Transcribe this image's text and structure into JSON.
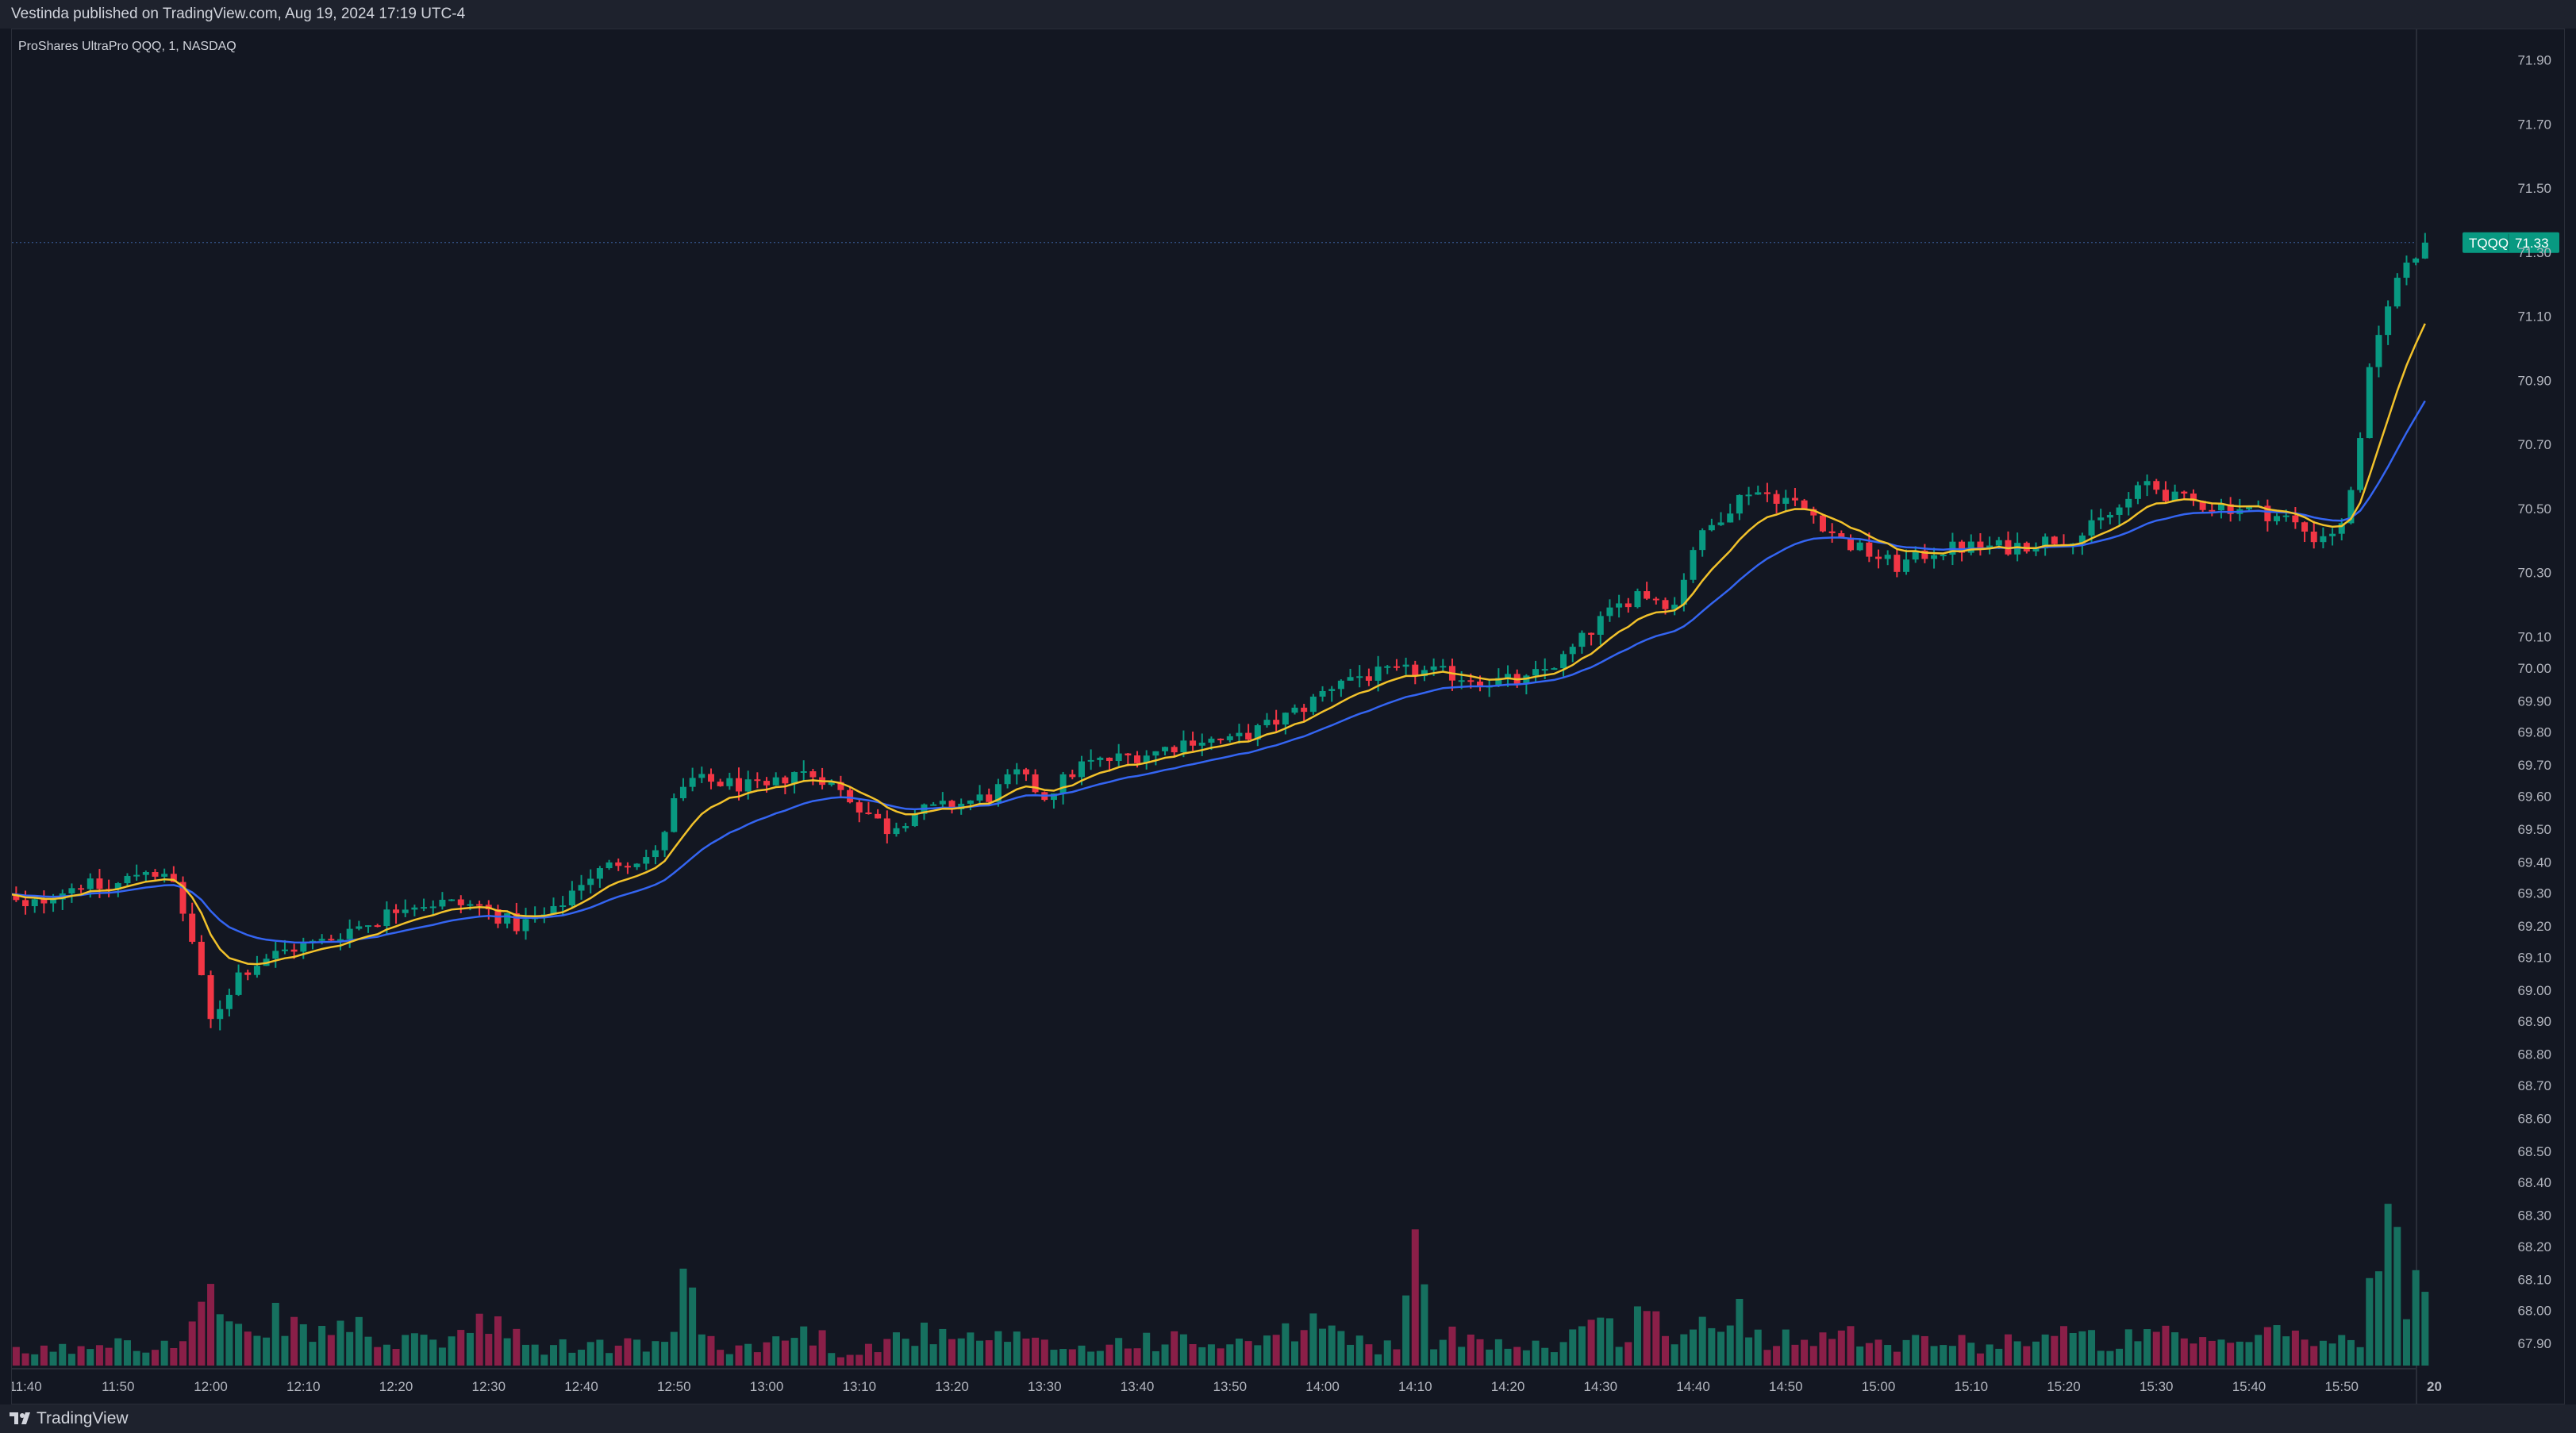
{
  "header": {
    "published_text": "Vestinda published on TradingView.com, Aug 19, 2024 17:19 UTC-4"
  },
  "footer": {
    "brand": "TradingView"
  },
  "chart_data": {
    "type": "candlestick",
    "title": "ProShares UltraPro QQQ, 1, NASDAQ",
    "symbol": "TQQQ",
    "last_price": "71.33",
    "price_ticks": [
      "71.90",
      "71.70",
      "71.50",
      "71.30",
      "71.10",
      "70.90",
      "70.70",
      "70.50",
      "70.30",
      "70.10",
      "70.00",
      "69.90",
      "69.80",
      "69.70",
      "69.60",
      "69.50",
      "69.40",
      "69.30",
      "69.20",
      "69.10",
      "69.00",
      "68.90",
      "68.80",
      "68.70",
      "68.60",
      "68.50",
      "68.40",
      "68.30",
      "68.20",
      "68.10",
      "68.00",
      "67.90"
    ],
    "time_ticks": [
      "11:40",
      "11:50",
      "12:00",
      "12:10",
      "12:20",
      "12:30",
      "12:40",
      "12:50",
      "13:00",
      "13:10",
      "13:20",
      "13:30",
      "13:40",
      "13:50",
      "14:00",
      "14:10",
      "14:20",
      "14:30",
      "14:40",
      "14:50",
      "15:00",
      "15:10",
      "15:20",
      "15:30",
      "15:40",
      "15:50",
      "20"
    ],
    "price_path": [
      [
        "11:38",
        69.29
      ],
      [
        "11:40",
        69.25
      ],
      [
        "11:43",
        69.3
      ],
      [
        "11:46",
        69.33
      ],
      [
        "11:49",
        69.31
      ],
      [
        "11:53",
        69.38
      ],
      [
        "11:56",
        69.33
      ],
      [
        "11:58",
        69.15
      ],
      [
        "12:00",
        68.9
      ],
      [
        "12:03",
        69.05
      ],
      [
        "12:06",
        69.1
      ],
      [
        "12:09",
        69.13
      ],
      [
        "12:12",
        69.15
      ],
      [
        "12:15",
        69.19
      ],
      [
        "12:18",
        69.22
      ],
      [
        "12:21",
        69.27
      ],
      [
        "12:25",
        69.27
      ],
      [
        "12:29",
        69.26
      ],
      [
        "12:33",
        69.2
      ],
      [
        "12:37",
        69.24
      ],
      [
        "12:40",
        69.34
      ],
      [
        "12:44",
        69.4
      ],
      [
        "12:48",
        69.42
      ],
      [
        "12:50",
        69.58
      ],
      [
        "12:52",
        69.65
      ],
      [
        "12:56",
        69.64
      ],
      [
        "13:00",
        69.62
      ],
      [
        "13:03",
        69.68
      ],
      [
        "13:06",
        69.66
      ],
      [
        "13:10",
        69.57
      ],
      [
        "13:13",
        69.5
      ],
      [
        "13:16",
        69.55
      ],
      [
        "13:20",
        69.57
      ],
      [
        "13:24",
        69.6
      ],
      [
        "13:27",
        69.67
      ],
      [
        "13:30",
        69.6
      ],
      [
        "13:34",
        69.7
      ],
      [
        "13:38",
        69.72
      ],
      [
        "13:42",
        69.74
      ],
      [
        "13:46",
        69.78
      ],
      [
        "13:50",
        69.77
      ],
      [
        "13:54",
        69.82
      ],
      [
        "13:58",
        69.88
      ],
      [
        "14:02",
        69.97
      ],
      [
        "14:06",
        69.98
      ],
      [
        "14:10",
        69.99
      ],
      [
        "14:14",
        69.98
      ],
      [
        "14:18",
        69.96
      ],
      [
        "14:22",
        69.96
      ],
      [
        "14:26",
        70.03
      ],
      [
        "14:30",
        70.15
      ],
      [
        "14:34",
        70.24
      ],
      [
        "14:38",
        70.2
      ],
      [
        "14:40",
        70.38
      ],
      [
        "14:43",
        70.48
      ],
      [
        "14:46",
        70.56
      ],
      [
        "14:50",
        70.53
      ],
      [
        "14:53",
        70.48
      ],
      [
        "14:56",
        70.4
      ],
      [
        "14:59",
        70.36
      ],
      [
        "15:02",
        70.32
      ],
      [
        "15:06",
        70.37
      ],
      [
        "15:10",
        70.38
      ],
      [
        "15:14",
        70.38
      ],
      [
        "15:18",
        70.4
      ],
      [
        "15:22",
        70.42
      ],
      [
        "15:26",
        70.5
      ],
      [
        "15:29",
        70.58
      ],
      [
        "15:32",
        70.53
      ],
      [
        "15:36",
        70.51
      ],
      [
        "15:40",
        70.5
      ],
      [
        "15:44",
        70.47
      ],
      [
        "15:47",
        70.41
      ],
      [
        "15:50",
        70.44
      ],
      [
        "15:52",
        70.7
      ],
      [
        "15:53",
        70.92
      ],
      [
        "15:55",
        71.15
      ],
      [
        "15:57",
        71.27
      ],
      [
        "15:59",
        71.33
      ]
    ],
    "volume_path": [
      [
        "11:38",
        0.04
      ],
      [
        "11:45",
        0.05
      ],
      [
        "11:50",
        0.09
      ],
      [
        "11:56",
        0.05
      ],
      [
        "12:00",
        0.21
      ],
      [
        "12:02",
        0.1
      ],
      [
        "12:05",
        0.07
      ],
      [
        "12:08",
        0.16
      ],
      [
        "12:10",
        0.09
      ],
      [
        "12:15",
        0.12
      ],
      [
        "12:20",
        0.06
      ],
      [
        "12:25",
        0.08
      ],
      [
        "12:30",
        0.12
      ],
      [
        "12:35",
        0.05
      ],
      [
        "12:40",
        0.06
      ],
      [
        "12:45",
        0.06
      ],
      [
        "12:50",
        0.07
      ],
      [
        "12:51",
        0.4
      ],
      [
        "12:53",
        0.08
      ],
      [
        "12:58",
        0.05
      ],
      [
        "13:00",
        0.07
      ],
      [
        "13:05",
        0.1
      ],
      [
        "13:08",
        0.04
      ],
      [
        "13:12",
        0.06
      ],
      [
        "13:16",
        0.1
      ],
      [
        "13:20",
        0.07
      ],
      [
        "13:25",
        0.08
      ],
      [
        "13:30",
        0.06
      ],
      [
        "13:35",
        0.05
      ],
      [
        "13:40",
        0.08
      ],
      [
        "13:45",
        0.07
      ],
      [
        "13:50",
        0.06
      ],
      [
        "13:55",
        0.07
      ],
      [
        "13:59",
        0.14
      ],
      [
        "14:02",
        0.08
      ],
      [
        "14:06",
        0.06
      ],
      [
        "14:08",
        0.06
      ],
      [
        "14:10",
        0.29
      ],
      [
        "14:12",
        0.07
      ],
      [
        "14:16",
        0.1
      ],
      [
        "14:20",
        0.06
      ],
      [
        "14:25",
        0.06
      ],
      [
        "14:28",
        0.12
      ],
      [
        "14:32",
        0.1
      ],
      [
        "14:35",
        0.16
      ],
      [
        "14:38",
        0.09
      ],
      [
        "14:42",
        0.11
      ],
      [
        "14:45",
        0.16
      ],
      [
        "14:48",
        0.07
      ],
      [
        "14:52",
        0.12
      ],
      [
        "14:55",
        0.08
      ],
      [
        "14:58",
        0.1
      ],
      [
        "15:02",
        0.07
      ],
      [
        "15:06",
        0.08
      ],
      [
        "15:10",
        0.06
      ],
      [
        "15:15",
        0.08
      ],
      [
        "15:20",
        0.09
      ],
      [
        "15:25",
        0.07
      ],
      [
        "15:30",
        0.09
      ],
      [
        "15:35",
        0.06
      ],
      [
        "15:40",
        0.08
      ],
      [
        "15:45",
        0.1
      ],
      [
        "15:49",
        0.06
      ],
      [
        "15:52",
        0.1
      ],
      [
        "15:54",
        0.3
      ],
      [
        "15:55",
        0.45
      ],
      [
        "15:57",
        0.18
      ],
      [
        "15:58",
        0.22
      ],
      [
        "15:59",
        0.16
      ]
    ],
    "series": [
      {
        "color": "#f2c22b",
        "role": "fast moving average"
      },
      {
        "color": "#3465f2",
        "role": "slow moving average"
      }
    ],
    "colors": {
      "up": "#089981",
      "down": "#f23645",
      "volume_up": "#16705f",
      "volume_down": "#8a1f48",
      "background": "#131722"
    },
    "price_range": [
      67.8,
      71.9
    ],
    "grid": false,
    "price_axis_position": "right"
  }
}
